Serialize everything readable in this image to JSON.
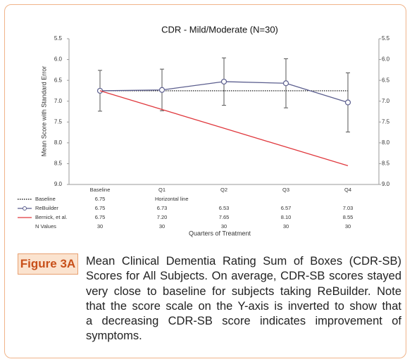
{
  "chart_data": {
    "type": "line",
    "title": "CDR - Mild/Moderate (N=30)",
    "y_label": "Mean Score with Standard Error",
    "x_label": "Quarters of Treatment",
    "categories": [
      "Baseline",
      "Q1",
      "Q2",
      "Q3",
      "Q4"
    ],
    "ylim": [
      5.5,
      9.0
    ],
    "y_inverted": true,
    "yticks": [
      5.5,
      {
        "value": 6,
        "label": "6.0"
      },
      6.5,
      {
        "value": 7,
        "label": "7.0"
      },
      7.5,
      {
        "value": 8,
        "label": "8.0"
      },
      8.5,
      {
        "value": 9,
        "label": "9.0"
      }
    ],
    "series": [
      {
        "name": "Baseline",
        "color": "#000000",
        "style": "dotted",
        "values": [
          6.75,
          6.75,
          6.75,
          6.75,
          6.75
        ],
        "value_labels": [
          "6.75",
          "Horizontal line",
          null,
          null,
          null
        ]
      },
      {
        "name": "ReBuilder",
        "color": "#5b5e8e",
        "marker": "circle",
        "values": [
          6.75,
          6.73,
          6.53,
          6.57,
          7.03
        ],
        "errors": [
          0.49,
          0.5,
          0.57,
          0.59,
          0.71
        ]
      },
      {
        "name": "Bernick, et al.",
        "color": "#e0393e",
        "values": [
          6.75,
          7.2,
          7.65,
          8.1,
          8.55
        ],
        "value_labels": [
          "6.75",
          "7.20",
          "7.65",
          "8.10",
          "8.55"
        ]
      }
    ],
    "n_values": {
      "name": "N Values",
      "values": [
        30,
        30,
        30,
        30,
        30
      ]
    }
  },
  "caption": {
    "label": "Figure 3A",
    "lines": [
      "Mean Clinical Dementia Rating Sum of Boxes (CDR-SB)",
      "Scores for All Subjects. On average, CDR-SB scores stayed",
      "very close to baseline for subjects taking ReBuilder. Note",
      "that the score scale on the Y-axis is inverted to show that",
      "a decreasing CDR-SB score indicates improvement of",
      "symptoms."
    ]
  }
}
